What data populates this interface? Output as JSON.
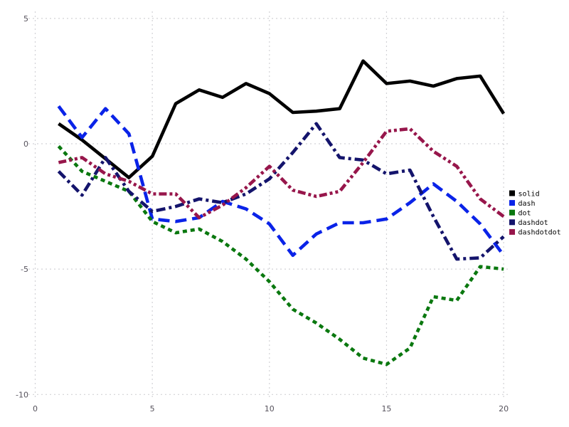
{
  "figure": {
    "background": "#ffffff",
    "grid_color": "#d2d2d6",
    "tick_label_color": "#56525c",
    "legend_text_color": "#000000"
  },
  "chart_data": {
    "type": "line",
    "title": "",
    "xlabel": "",
    "ylabel": "",
    "xlim": [
      0,
      20
    ],
    "ylim": [
      -10,
      5
    ],
    "x_ticks": [
      0,
      5,
      10,
      15,
      20
    ],
    "y_ticks": [
      5,
      0,
      -5,
      -10
    ],
    "grid": "dotted",
    "legend_position": "right",
    "x": [
      1,
      2,
      3,
      4,
      5,
      6,
      7,
      8,
      9,
      10,
      11,
      12,
      13,
      14,
      15,
      16,
      17,
      18,
      19,
      20
    ],
    "series": [
      {
        "name": "solid",
        "color": "#000000",
        "linestyle": "solid",
        "values": [
          0.8,
          0.15,
          -0.6,
          -1.35,
          -0.5,
          1.6,
          2.15,
          1.85,
          2.4,
          2.0,
          1.25,
          1.3,
          1.4,
          3.3,
          2.4,
          2.5,
          2.3,
          2.6,
          2.7,
          1.2
        ]
      },
      {
        "name": "dash",
        "color": "#0a23e8",
        "linestyle": "dash",
        "values": [
          1.5,
          0.25,
          1.4,
          0.4,
          -3.0,
          -3.1,
          -2.95,
          -2.3,
          -2.6,
          -3.2,
          -4.45,
          -3.6,
          -3.15,
          -3.15,
          -3.0,
          -2.35,
          -1.6,
          -2.3,
          -3.2,
          -4.45
        ]
      },
      {
        "name": "dot",
        "color": "#0a780f",
        "linestyle": "dot",
        "values": [
          -0.1,
          -1.1,
          -1.5,
          -1.9,
          -3.1,
          -3.55,
          -3.4,
          -3.9,
          -4.6,
          -5.5,
          -6.6,
          -7.15,
          -7.8,
          -8.55,
          -8.8,
          -8.15,
          -6.1,
          -6.25,
          -4.9,
          -5.0
        ]
      },
      {
        "name": "dashdot",
        "color": "#14146c",
        "linestyle": "dashdot",
        "values": [
          -1.1,
          -2.05,
          -0.55,
          -1.9,
          -2.7,
          -2.5,
          -2.2,
          -2.35,
          -2.0,
          -1.4,
          -0.35,
          0.8,
          -0.55,
          -0.65,
          -1.2,
          -1.05,
          -2.9,
          -4.6,
          -4.55,
          -3.7
        ]
      },
      {
        "name": "dashdotdot",
        "color": "#97164b",
        "linestyle": "dashdotdot",
        "values": [
          -0.75,
          -0.55,
          -1.2,
          -1.5,
          -2.0,
          -2.0,
          -2.95,
          -2.45,
          -1.75,
          -0.9,
          -1.85,
          -2.1,
          -1.9,
          -0.75,
          0.5,
          0.6,
          -0.3,
          -0.9,
          -2.2,
          -2.9
        ]
      }
    ],
    "legend_entries": [
      "solid",
      "dash",
      "dot",
      "dashdot",
      "dashdotdot"
    ]
  }
}
